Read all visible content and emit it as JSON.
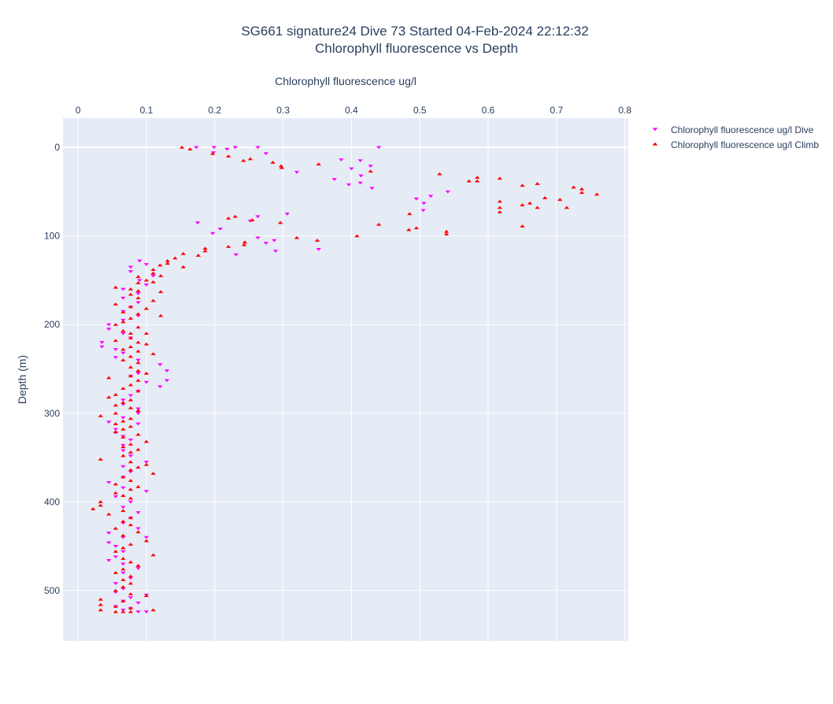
{
  "chart_data": {
    "type": "scatter",
    "title": [
      "SG661 signature24 Dive 73 Started 04-Feb-2024 22:12:32",
      "Chlorophyll fluorescence vs Depth"
    ],
    "xlabel": "Chlorophyll fluorescence ug/l",
    "ylabel": "Depth (m)",
    "x_axis_position": "top",
    "y_reversed": true,
    "xlim": [
      -0.022,
      0.805
    ],
    "ylim": [
      -33,
      557
    ],
    "xticks": [
      0,
      0.1,
      0.2,
      0.3,
      0.4,
      0.5,
      0.6,
      0.7,
      0.8
    ],
    "xtick_labels": [
      "0",
      "0.1",
      "0.2",
      "0.3",
      "0.4",
      "0.5",
      "0.6",
      "0.7",
      "0.8"
    ],
    "yticks": [
      0,
      100,
      200,
      300,
      400,
      500
    ],
    "ytick_labels": [
      "0",
      "100",
      "200",
      "300",
      "400",
      "500"
    ],
    "grid": true,
    "legend_position": "top-right",
    "background": "#e5ecf6",
    "series": [
      {
        "name": "Chlorophyll fluorescence ug/l Dive",
        "marker": "triangle-down",
        "color": "#ff00ff",
        "points": [
          [
            0.173,
            0
          ],
          [
            0.199,
            0
          ],
          [
            0.23,
            0
          ],
          [
            0.263,
            0
          ],
          [
            0.44,
            0
          ],
          [
            0.218,
            2
          ],
          [
            0.198,
            6
          ],
          [
            0.275,
            7
          ],
          [
            0.385,
            14
          ],
          [
            0.413,
            15
          ],
          [
            0.428,
            21
          ],
          [
            0.4,
            24
          ],
          [
            0.32,
            28
          ],
          [
            0.414,
            32
          ],
          [
            0.375,
            36
          ],
          [
            0.413,
            40
          ],
          [
            0.396,
            42
          ],
          [
            0.43,
            46
          ],
          [
            0.541,
            50
          ],
          [
            0.516,
            55
          ],
          [
            0.495,
            58
          ],
          [
            0.506,
            63
          ],
          [
            0.505,
            71
          ],
          [
            0.263,
            78
          ],
          [
            0.306,
            75
          ],
          [
            0.252,
            83
          ],
          [
            0.175,
            85
          ],
          [
            0.208,
            92
          ],
          [
            0.197,
            97
          ],
          [
            0.263,
            102
          ],
          [
            0.287,
            105
          ],
          [
            0.275,
            108
          ],
          [
            0.289,
            117
          ],
          [
            0.352,
            115
          ],
          [
            0.231,
            121
          ],
          [
            0.09,
            128
          ],
          [
            0.1,
            132
          ],
          [
            0.077,
            135
          ],
          [
            0.077,
            140
          ],
          [
            0.11,
            145
          ],
          [
            0.09,
            150
          ],
          [
            0.1,
            155
          ],
          [
            0.066,
            160
          ],
          [
            0.088,
            165
          ],
          [
            0.066,
            170
          ],
          [
            0.088,
            175
          ],
          [
            0.077,
            180
          ],
          [
            0.066,
            185
          ],
          [
            0.088,
            190
          ],
          [
            0.066,
            195
          ],
          [
            0.045,
            200
          ],
          [
            0.045,
            205
          ],
          [
            0.066,
            210
          ],
          [
            0.077,
            215
          ],
          [
            0.035,
            220
          ],
          [
            0.035,
            225
          ],
          [
            0.055,
            228
          ],
          [
            0.066,
            232
          ],
          [
            0.055,
            237
          ],
          [
            0.088,
            240
          ],
          [
            0.12,
            245
          ],
          [
            0.13,
            252
          ],
          [
            0.088,
            255
          ],
          [
            0.077,
            258
          ],
          [
            0.13,
            263
          ],
          [
            0.1,
            265
          ],
          [
            0.12,
            270
          ],
          [
            0.088,
            275
          ],
          [
            0.077,
            280
          ],
          [
            0.066,
            285
          ],
          [
            0.066,
            290
          ],
          [
            0.088,
            295
          ],
          [
            0.088,
            300
          ],
          [
            0.066,
            305
          ],
          [
            0.045,
            310
          ],
          [
            0.088,
            312
          ],
          [
            0.055,
            318
          ],
          [
            0.055,
            322
          ],
          [
            0.066,
            326
          ],
          [
            0.077,
            330
          ],
          [
            0.066,
            336
          ],
          [
            0.066,
            342
          ],
          [
            0.077,
            348
          ],
          [
            0.1,
            355
          ],
          [
            0.066,
            360
          ],
          [
            0.077,
            366
          ],
          [
            0.066,
            372
          ],
          [
            0.045,
            378
          ],
          [
            0.066,
            384
          ],
          [
            0.1,
            388
          ],
          [
            0.055,
            394
          ],
          [
            0.077,
            400
          ],
          [
            0.066,
            406
          ],
          [
            0.088,
            412
          ],
          [
            0.077,
            418
          ],
          [
            0.066,
            424
          ],
          [
            0.088,
            430
          ],
          [
            0.045,
            435
          ],
          [
            0.066,
            440
          ],
          [
            0.1,
            440
          ],
          [
            0.045,
            446
          ],
          [
            0.055,
            450
          ],
          [
            0.066,
            456
          ],
          [
            0.055,
            462
          ],
          [
            0.045,
            466
          ],
          [
            0.066,
            470
          ],
          [
            0.088,
            475
          ],
          [
            0.066,
            480
          ],
          [
            0.077,
            486
          ],
          [
            0.055,
            492
          ],
          [
            0.066,
            498
          ],
          [
            0.055,
            502
          ],
          [
            0.1,
            505
          ],
          [
            0.077,
            508
          ],
          [
            0.066,
            512
          ],
          [
            0.088,
            514
          ],
          [
            0.055,
            518
          ],
          [
            0.077,
            520
          ],
          [
            0.066,
            522
          ],
          [
            0.088,
            524
          ],
          [
            0.1,
            524
          ]
        ]
      },
      {
        "name": "Chlorophyll fluorescence ug/l Climb",
        "marker": "triangle-up",
        "color": "#ff0000",
        "points": [
          [
            0.152,
            0
          ],
          [
            0.164,
            2
          ],
          [
            0.197,
            7
          ],
          [
            0.22,
            10
          ],
          [
            0.252,
            13
          ],
          [
            0.242,
            15
          ],
          [
            0.285,
            17
          ],
          [
            0.297,
            21
          ],
          [
            0.298,
            23
          ],
          [
            0.352,
            19
          ],
          [
            0.428,
            27
          ],
          [
            0.529,
            30
          ],
          [
            0.584,
            34
          ],
          [
            0.572,
            38
          ],
          [
            0.584,
            38
          ],
          [
            0.617,
            35
          ],
          [
            0.65,
            43
          ],
          [
            0.672,
            41
          ],
          [
            0.725,
            45
          ],
          [
            0.737,
            47
          ],
          [
            0.737,
            51
          ],
          [
            0.759,
            53
          ],
          [
            0.683,
            57
          ],
          [
            0.705,
            59
          ],
          [
            0.617,
            61
          ],
          [
            0.661,
            63
          ],
          [
            0.65,
            65
          ],
          [
            0.617,
            68
          ],
          [
            0.672,
            68
          ],
          [
            0.715,
            68
          ],
          [
            0.617,
            73
          ],
          [
            0.485,
            75
          ],
          [
            0.44,
            87
          ],
          [
            0.65,
            89
          ],
          [
            0.495,
            91
          ],
          [
            0.484,
            93
          ],
          [
            0.539,
            95
          ],
          [
            0.539,
            98
          ],
          [
            0.408,
            100
          ],
          [
            0.32,
            102
          ],
          [
            0.35,
            105
          ],
          [
            0.244,
            107
          ],
          [
            0.22,
            80
          ],
          [
            0.23,
            78
          ],
          [
            0.255,
            82
          ],
          [
            0.296,
            85
          ],
          [
            0.243,
            110
          ],
          [
            0.22,
            112
          ],
          [
            0.186,
            114
          ],
          [
            0.186,
            117
          ],
          [
            0.154,
            120
          ],
          [
            0.176,
            122
          ],
          [
            0.142,
            125
          ],
          [
            0.131,
            128
          ],
          [
            0.131,
            131
          ],
          [
            0.12,
            133
          ],
          [
            0.154,
            135
          ],
          [
            0.11,
            138
          ],
          [
            0.11,
            142
          ],
          [
            0.088,
            146
          ],
          [
            0.121,
            145
          ],
          [
            0.1,
            150
          ],
          [
            0.088,
            153
          ],
          [
            0.11,
            152
          ],
          [
            0.055,
            158
          ],
          [
            0.077,
            160
          ],
          [
            0.088,
            162
          ],
          [
            0.121,
            163
          ],
          [
            0.077,
            166
          ],
          [
            0.088,
            170
          ],
          [
            0.11,
            173
          ],
          [
            0.055,
            177
          ],
          [
            0.077,
            180
          ],
          [
            0.1,
            182
          ],
          [
            0.066,
            186
          ],
          [
            0.088,
            188
          ],
          [
            0.121,
            190
          ],
          [
            0.077,
            193
          ],
          [
            0.066,
            197
          ],
          [
            0.055,
            200
          ],
          [
            0.088,
            203
          ],
          [
            0.066,
            207
          ],
          [
            0.077,
            210
          ],
          [
            0.1,
            210
          ],
          [
            0.077,
            215
          ],
          [
            0.055,
            218
          ],
          [
            0.088,
            220
          ],
          [
            0.1,
            222
          ],
          [
            0.077,
            225
          ],
          [
            0.066,
            228
          ],
          [
            0.088,
            230
          ],
          [
            0.11,
            233
          ],
          [
            0.077,
            236
          ],
          [
            0.066,
            240
          ],
          [
            0.088,
            243
          ],
          [
            0.077,
            248
          ],
          [
            0.088,
            252
          ],
          [
            0.1,
            255
          ],
          [
            0.077,
            258
          ],
          [
            0.045,
            260
          ],
          [
            0.088,
            263
          ],
          [
            0.077,
            268
          ],
          [
            0.066,
            272
          ],
          [
            0.088,
            275
          ],
          [
            0.055,
            279
          ],
          [
            0.045,
            282
          ],
          [
            0.077,
            285
          ],
          [
            0.066,
            288
          ],
          [
            0.055,
            291
          ],
          [
            0.077,
            294
          ],
          [
            0.088,
            297
          ],
          [
            0.055,
            300
          ],
          [
            0.033,
            303
          ],
          [
            0.077,
            306
          ],
          [
            0.066,
            309
          ],
          [
            0.055,
            312
          ],
          [
            0.077,
            315
          ],
          [
            0.066,
            318
          ],
          [
            0.055,
            321
          ],
          [
            0.088,
            324
          ],
          [
            0.066,
            327
          ],
          [
            0.1,
            332
          ],
          [
            0.077,
            335
          ],
          [
            0.066,
            338
          ],
          [
            0.088,
            341
          ],
          [
            0.077,
            344
          ],
          [
            0.066,
            348
          ],
          [
            0.033,
            352
          ],
          [
            0.077,
            355
          ],
          [
            0.1,
            358
          ],
          [
            0.088,
            361
          ],
          [
            0.077,
            364
          ],
          [
            0.11,
            368
          ],
          [
            0.066,
            372
          ],
          [
            0.077,
            376
          ],
          [
            0.055,
            380
          ],
          [
            0.088,
            383
          ],
          [
            0.077,
            386
          ],
          [
            0.055,
            390
          ],
          [
            0.066,
            393
          ],
          [
            0.077,
            396
          ],
          [
            0.033,
            400
          ],
          [
            0.033,
            404
          ],
          [
            0.022,
            408
          ],
          [
            0.066,
            410
          ],
          [
            0.045,
            414
          ],
          [
            0.077,
            418
          ],
          [
            0.066,
            422
          ],
          [
            0.077,
            426
          ],
          [
            0.055,
            430
          ],
          [
            0.088,
            434
          ],
          [
            0.066,
            438
          ],
          [
            0.1,
            444
          ],
          [
            0.077,
            448
          ],
          [
            0.066,
            452
          ],
          [
            0.055,
            456
          ],
          [
            0.11,
            460
          ],
          [
            0.066,
            464
          ],
          [
            0.077,
            468
          ],
          [
            0.088,
            472
          ],
          [
            0.066,
            476
          ],
          [
            0.055,
            480
          ],
          [
            0.077,
            484
          ],
          [
            0.066,
            488
          ],
          [
            0.077,
            492
          ],
          [
            0.066,
            496
          ],
          [
            0.055,
            500
          ],
          [
            0.077,
            504
          ],
          [
            0.1,
            506
          ],
          [
            0.033,
            510
          ],
          [
            0.066,
            512
          ],
          [
            0.033,
            516
          ],
          [
            0.055,
            518
          ],
          [
            0.077,
            520
          ],
          [
            0.033,
            522
          ],
          [
            0.11,
            522
          ],
          [
            0.055,
            524
          ],
          [
            0.066,
            524
          ],
          [
            0.077,
            524
          ]
        ]
      }
    ]
  }
}
